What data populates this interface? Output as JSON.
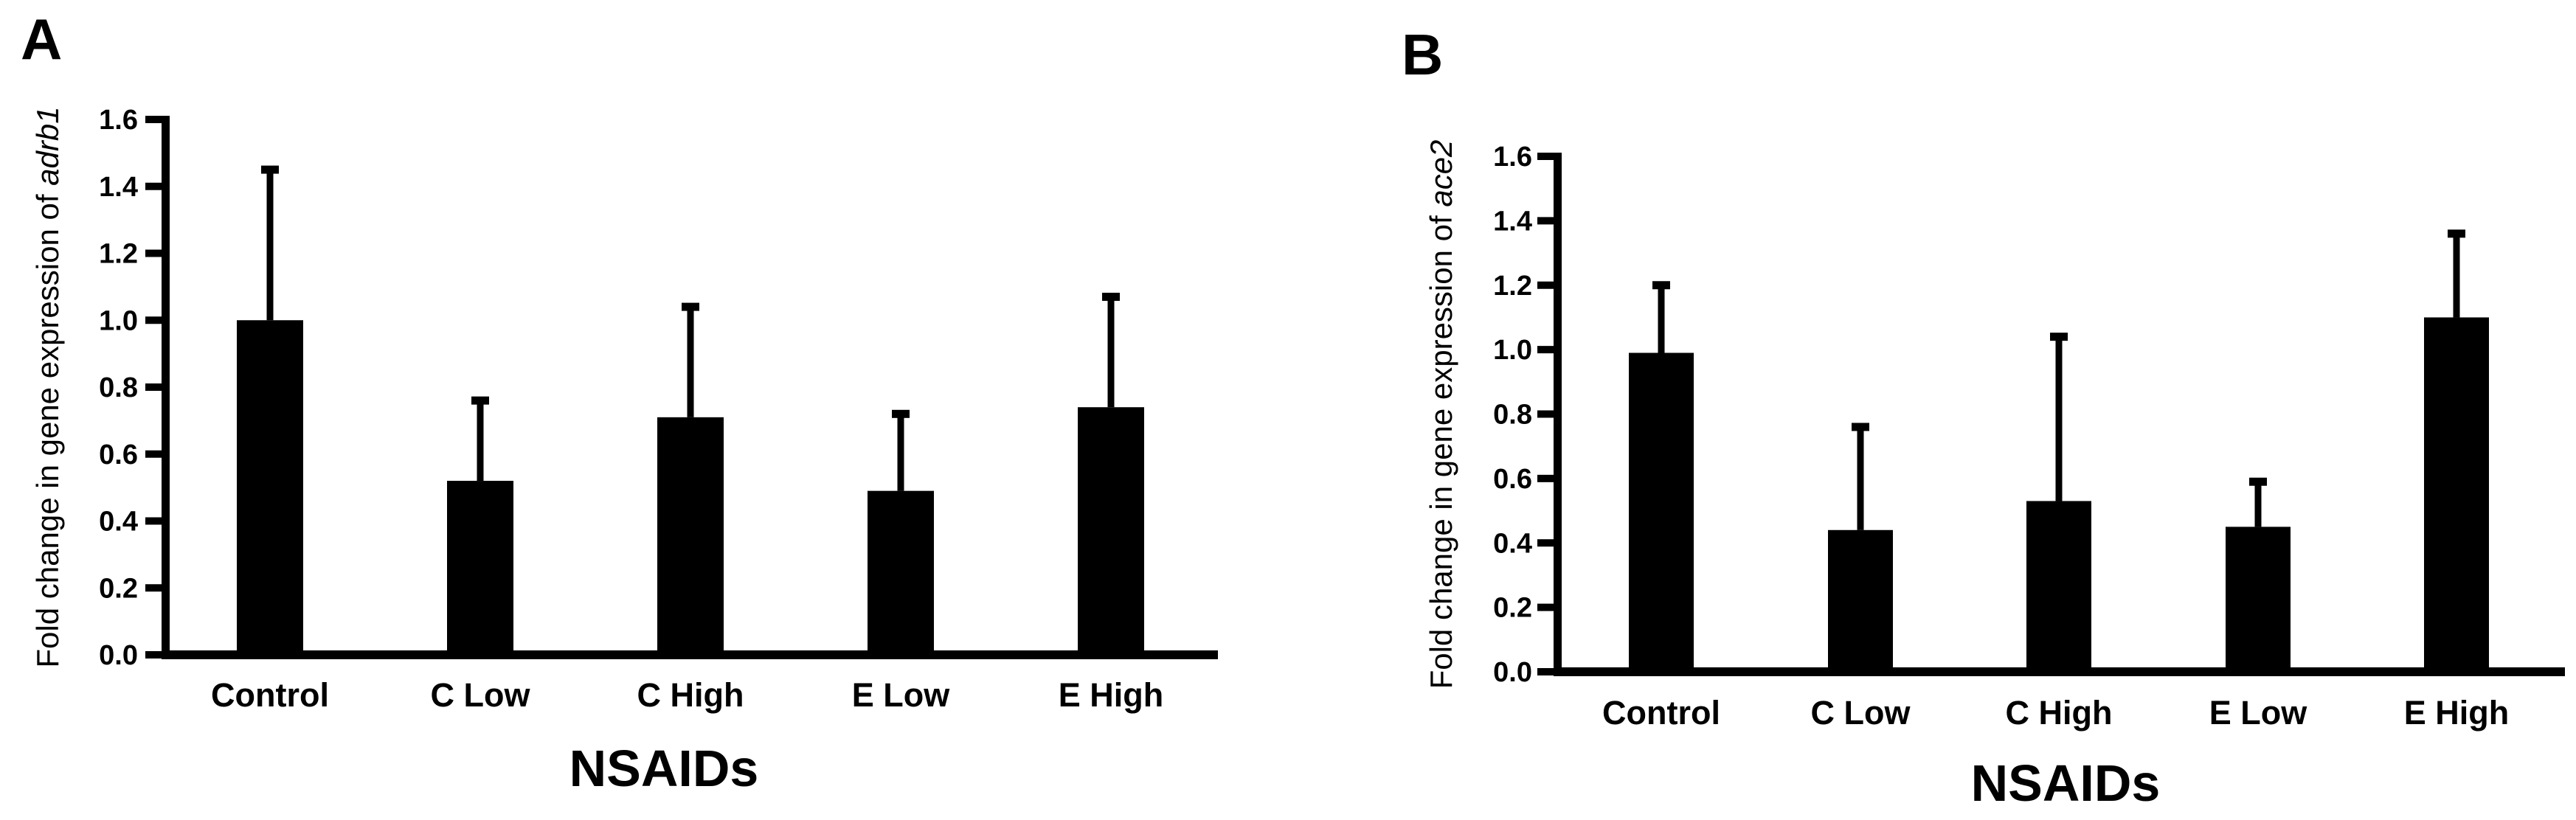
{
  "figure": {
    "background": "#ffffff",
    "ink_color": "#000000"
  },
  "chart_data": [
    {
      "type": "bar",
      "panel_label": "A",
      "categories": [
        "Control",
        "C Low",
        "C High",
        "E Low",
        "E High"
      ],
      "values": [
        1.0,
        0.52,
        0.71,
        0.49,
        0.74
      ],
      "error_up": [
        0.45,
        0.24,
        0.33,
        0.23,
        0.33
      ],
      "xlabel": "NSAIDs",
      "ylabel_prefix": "Fold change in gene expression of ",
      "gene_italic": "adrb1",
      "ylim": [
        0,
        1.6
      ],
      "ytick_step": 0.2,
      "ytick_labels": [
        "0.0",
        "0.2",
        "0.4",
        "0.6",
        "0.8",
        "1.0",
        "1.2",
        "1.4",
        "1.6"
      ],
      "bar_color": "#000000",
      "error_direction": "up",
      "grid": false,
      "legend": false
    },
    {
      "type": "bar",
      "panel_label": "B",
      "categories": [
        "Control",
        "C Low",
        "C High",
        "E Low",
        "E High"
      ],
      "values": [
        0.99,
        0.44,
        0.53,
        0.45,
        1.1
      ],
      "error_up": [
        0.21,
        0.32,
        0.51,
        0.14,
        0.26
      ],
      "xlabel": "NSAIDs",
      "ylabel_prefix": "Fold change in gene expression of ",
      "gene_italic": "ace2",
      "ylim": [
        0,
        1.6
      ],
      "ytick_step": 0.2,
      "ytick_labels": [
        "0.0",
        "0.2",
        "0.4",
        "0.6",
        "0.8",
        "1.0",
        "1.2",
        "1.4",
        "1.6"
      ],
      "bar_color": "#000000",
      "error_direction": "up",
      "grid": false,
      "legend": false
    }
  ]
}
